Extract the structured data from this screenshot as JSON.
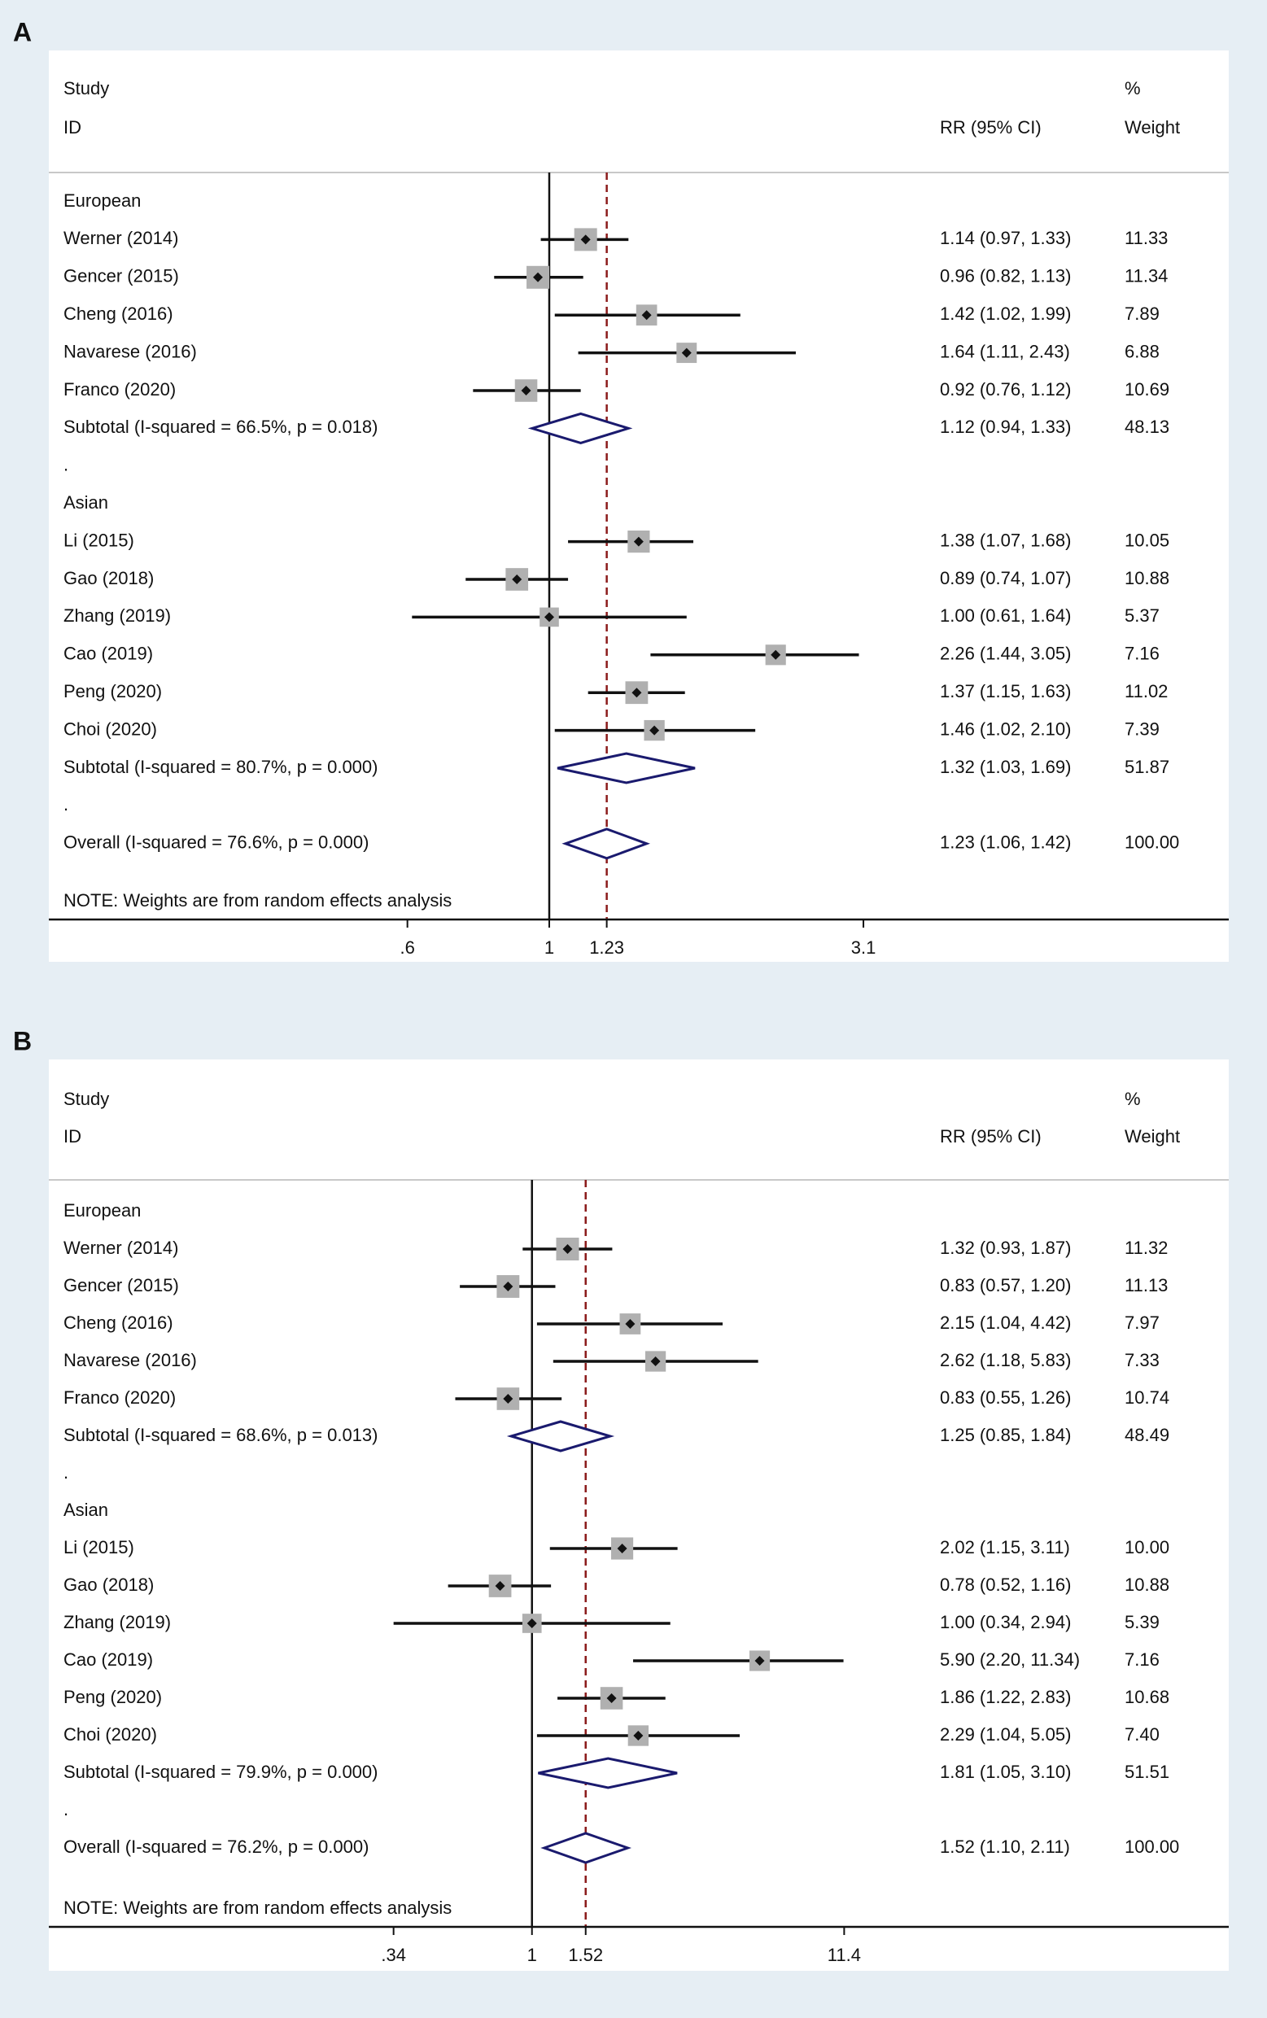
{
  "chart_data": [
    {
      "panel": "A",
      "type": "forest",
      "header": {
        "study": "Study",
        "id": "ID",
        "effect": "RR (95% CI)",
        "pct": "%",
        "weight": "Weight"
      },
      "x_ticks": [
        ".6",
        "1",
        "1.23",
        "3.1"
      ],
      "x_tick_values": [
        0.6,
        1,
        1.23,
        3.1
      ],
      "xlim": [
        0.46,
        3.75
      ],
      "null_line": 1,
      "overall_line": 1.23,
      "note": "NOTE: Weights are from random effects analysis",
      "rows": [
        {
          "kind": "group",
          "label": "European"
        },
        {
          "kind": "study",
          "label": "Werner (2014)",
          "rr": 1.14,
          "lo": 0.97,
          "hi": 1.33,
          "ci_text": "1.14 (0.97, 1.33)",
          "weight": 11.33,
          "weight_text": "11.33"
        },
        {
          "kind": "study",
          "label": "Gencer (2015)",
          "rr": 0.96,
          "lo": 0.82,
          "hi": 1.13,
          "ci_text": "0.96 (0.82, 1.13)",
          "weight": 11.34,
          "weight_text": "11.34"
        },
        {
          "kind": "study",
          "label": "Cheng (2016)",
          "rr": 1.42,
          "lo": 1.02,
          "hi": 1.99,
          "ci_text": "1.42 (1.02, 1.99)",
          "weight": 7.89,
          "weight_text": "7.89"
        },
        {
          "kind": "study",
          "label": "Navarese (2016)",
          "rr": 1.64,
          "lo": 1.11,
          "hi": 2.43,
          "ci_text": "1.64 (1.11, 2.43)",
          "weight": 6.88,
          "weight_text": "6.88"
        },
        {
          "kind": "study",
          "label": "Franco (2020)",
          "rr": 0.92,
          "lo": 0.76,
          "hi": 1.12,
          "ci_text": "0.92 (0.76, 1.12)",
          "weight": 10.69,
          "weight_text": "10.69"
        },
        {
          "kind": "subtotal",
          "label": "Subtotal  (I-squared = 66.5%, p = 0.018)",
          "rr": 1.12,
          "lo": 0.94,
          "hi": 1.33,
          "ci_text": "1.12 (0.94, 1.33)",
          "weight_text": "48.13"
        },
        {
          "kind": "spacer",
          "label": "."
        },
        {
          "kind": "group",
          "label": "Asian"
        },
        {
          "kind": "study",
          "label": "Li (2015)",
          "rr": 1.38,
          "lo": 1.07,
          "hi": 1.68,
          "ci_text": "1.38 (1.07, 1.68)",
          "weight": 10.05,
          "weight_text": "10.05"
        },
        {
          "kind": "study",
          "label": "Gao (2018)",
          "rr": 0.89,
          "lo": 0.74,
          "hi": 1.07,
          "ci_text": "0.89 (0.74, 1.07)",
          "weight": 10.88,
          "weight_text": "10.88"
        },
        {
          "kind": "study",
          "label": "Zhang (2019)",
          "rr": 1.0,
          "lo": 0.61,
          "hi": 1.64,
          "ci_text": "1.00 (0.61, 1.64)",
          "weight": 5.37,
          "weight_text": "5.37"
        },
        {
          "kind": "study",
          "label": "Cao (2019)",
          "rr": 2.26,
          "lo": 1.44,
          "hi": 3.05,
          "ci_text": "2.26 (1.44, 3.05)",
          "weight": 7.16,
          "weight_text": "7.16"
        },
        {
          "kind": "study",
          "label": "Peng (2020)",
          "rr": 1.37,
          "lo": 1.15,
          "hi": 1.63,
          "ci_text": "1.37 (1.15, 1.63)",
          "weight": 11.02,
          "weight_text": "11.02"
        },
        {
          "kind": "study",
          "label": "Choi (2020)",
          "rr": 1.46,
          "lo": 1.02,
          "hi": 2.1,
          "ci_text": "1.46 (1.02, 2.10)",
          "weight": 7.39,
          "weight_text": "7.39"
        },
        {
          "kind": "subtotal",
          "label": "Subtotal  (I-squared = 80.7%, p = 0.000)",
          "rr": 1.32,
          "lo": 1.03,
          "hi": 1.69,
          "ci_text": "1.32 (1.03, 1.69)",
          "weight_text": "51.87"
        },
        {
          "kind": "spacer",
          "label": "."
        },
        {
          "kind": "overall",
          "label": "Overall  (I-squared = 76.6%, p = 0.000)",
          "rr": 1.23,
          "lo": 1.06,
          "hi": 1.42,
          "ci_text": "1.23 (1.06, 1.42)",
          "weight_text": "100.00"
        }
      ]
    },
    {
      "panel": "B",
      "type": "forest",
      "header": {
        "study": "Study",
        "id": "ID",
        "effect": "RR (95% CI)",
        "pct": "%",
        "weight": "Weight"
      },
      "x_ticks": [
        ".34",
        "1",
        "1.52",
        "11.4"
      ],
      "x_tick_values": [
        0.34,
        1,
        1.52,
        11.4
      ],
      "xlim": [
        0.2,
        20
      ],
      "null_line": 1,
      "overall_line": 1.52,
      "note": "NOTE: Weights are from random effects analysis",
      "rows": [
        {
          "kind": "group",
          "label": "European"
        },
        {
          "kind": "study",
          "label": "Werner (2014)",
          "rr": 1.32,
          "lo": 0.93,
          "hi": 1.87,
          "ci_text": "1.32 (0.93, 1.87)",
          "weight": 11.32,
          "weight_text": "11.32"
        },
        {
          "kind": "study",
          "label": "Gencer (2015)",
          "rr": 0.83,
          "lo": 0.57,
          "hi": 1.2,
          "ci_text": "0.83 (0.57, 1.20)",
          "weight": 11.13,
          "weight_text": "11.13"
        },
        {
          "kind": "study",
          "label": "Cheng (2016)",
          "rr": 2.15,
          "lo": 1.04,
          "hi": 4.42,
          "ci_text": "2.15 (1.04, 4.42)",
          "weight": 7.97,
          "weight_text": "7.97"
        },
        {
          "kind": "study",
          "label": "Navarese (2016)",
          "rr": 2.62,
          "lo": 1.18,
          "hi": 5.83,
          "ci_text": "2.62 (1.18, 5.83)",
          "weight": 7.33,
          "weight_text": "7.33"
        },
        {
          "kind": "study",
          "label": "Franco (2020)",
          "rr": 0.83,
          "lo": 0.55,
          "hi": 1.26,
          "ci_text": "0.83 (0.55, 1.26)",
          "weight": 10.74,
          "weight_text": "10.74"
        },
        {
          "kind": "subtotal",
          "label": "Subtotal  (I-squared = 68.6%, p = 0.013)",
          "rr": 1.25,
          "lo": 0.85,
          "hi": 1.84,
          "ci_text": "1.25 (0.85, 1.84)",
          "weight_text": "48.49"
        },
        {
          "kind": "spacer",
          "label": "."
        },
        {
          "kind": "group",
          "label": "Asian"
        },
        {
          "kind": "study",
          "label": "Li (2015)",
          "rr": 2.02,
          "lo": 1.15,
          "hi": 3.11,
          "ci_text": "2.02 (1.15, 3.11)",
          "weight": 10.0,
          "weight_text": "10.00"
        },
        {
          "kind": "study",
          "label": "Gao (2018)",
          "rr": 0.78,
          "lo": 0.52,
          "hi": 1.16,
          "ci_text": "0.78 (0.52, 1.16)",
          "weight": 10.88,
          "weight_text": "10.88"
        },
        {
          "kind": "study",
          "label": "Zhang (2019)",
          "rr": 1.0,
          "lo": 0.34,
          "hi": 2.94,
          "ci_text": "1.00 (0.34, 2.94)",
          "weight": 5.39,
          "weight_text": "5.39"
        },
        {
          "kind": "study",
          "label": "Cao (2019)",
          "rr": 5.9,
          "lo": 2.2,
          "hi": 11.34,
          "ci_text": "5.90 (2.20, 11.34)",
          "weight": 7.16,
          "weight_text": "7.16"
        },
        {
          "kind": "study",
          "label": "Peng (2020)",
          "rr": 1.86,
          "lo": 1.22,
          "hi": 2.83,
          "ci_text": "1.86 (1.22, 2.83)",
          "weight": 10.68,
          "weight_text": "10.68"
        },
        {
          "kind": "study",
          "label": "Choi (2020)",
          "rr": 2.29,
          "lo": 1.04,
          "hi": 5.05,
          "ci_text": "2.29 (1.04, 5.05)",
          "weight": 7.4,
          "weight_text": "7.40"
        },
        {
          "kind": "subtotal",
          "label": "Subtotal  (I-squared = 79.9%, p = 0.000)",
          "rr": 1.81,
          "lo": 1.05,
          "hi": 3.1,
          "ci_text": "1.81 (1.05, 3.10)",
          "weight_text": "51.51"
        },
        {
          "kind": "spacer",
          "label": "."
        },
        {
          "kind": "overall",
          "label": "Overall  (I-squared = 76.2%, p = 0.000)",
          "rr": 1.52,
          "lo": 1.1,
          "hi": 2.11,
          "ci_text": "1.52 (1.10, 2.11)",
          "weight_text": "100.00"
        }
      ]
    }
  ],
  "colors": {
    "outer_bg": "#e6eef4",
    "inner_bg": "#ffffff",
    "line": "#111111",
    "ref_line": "#8b1a1a",
    "diamond": "#1a1a6e",
    "box": "#b0b0b0"
  }
}
